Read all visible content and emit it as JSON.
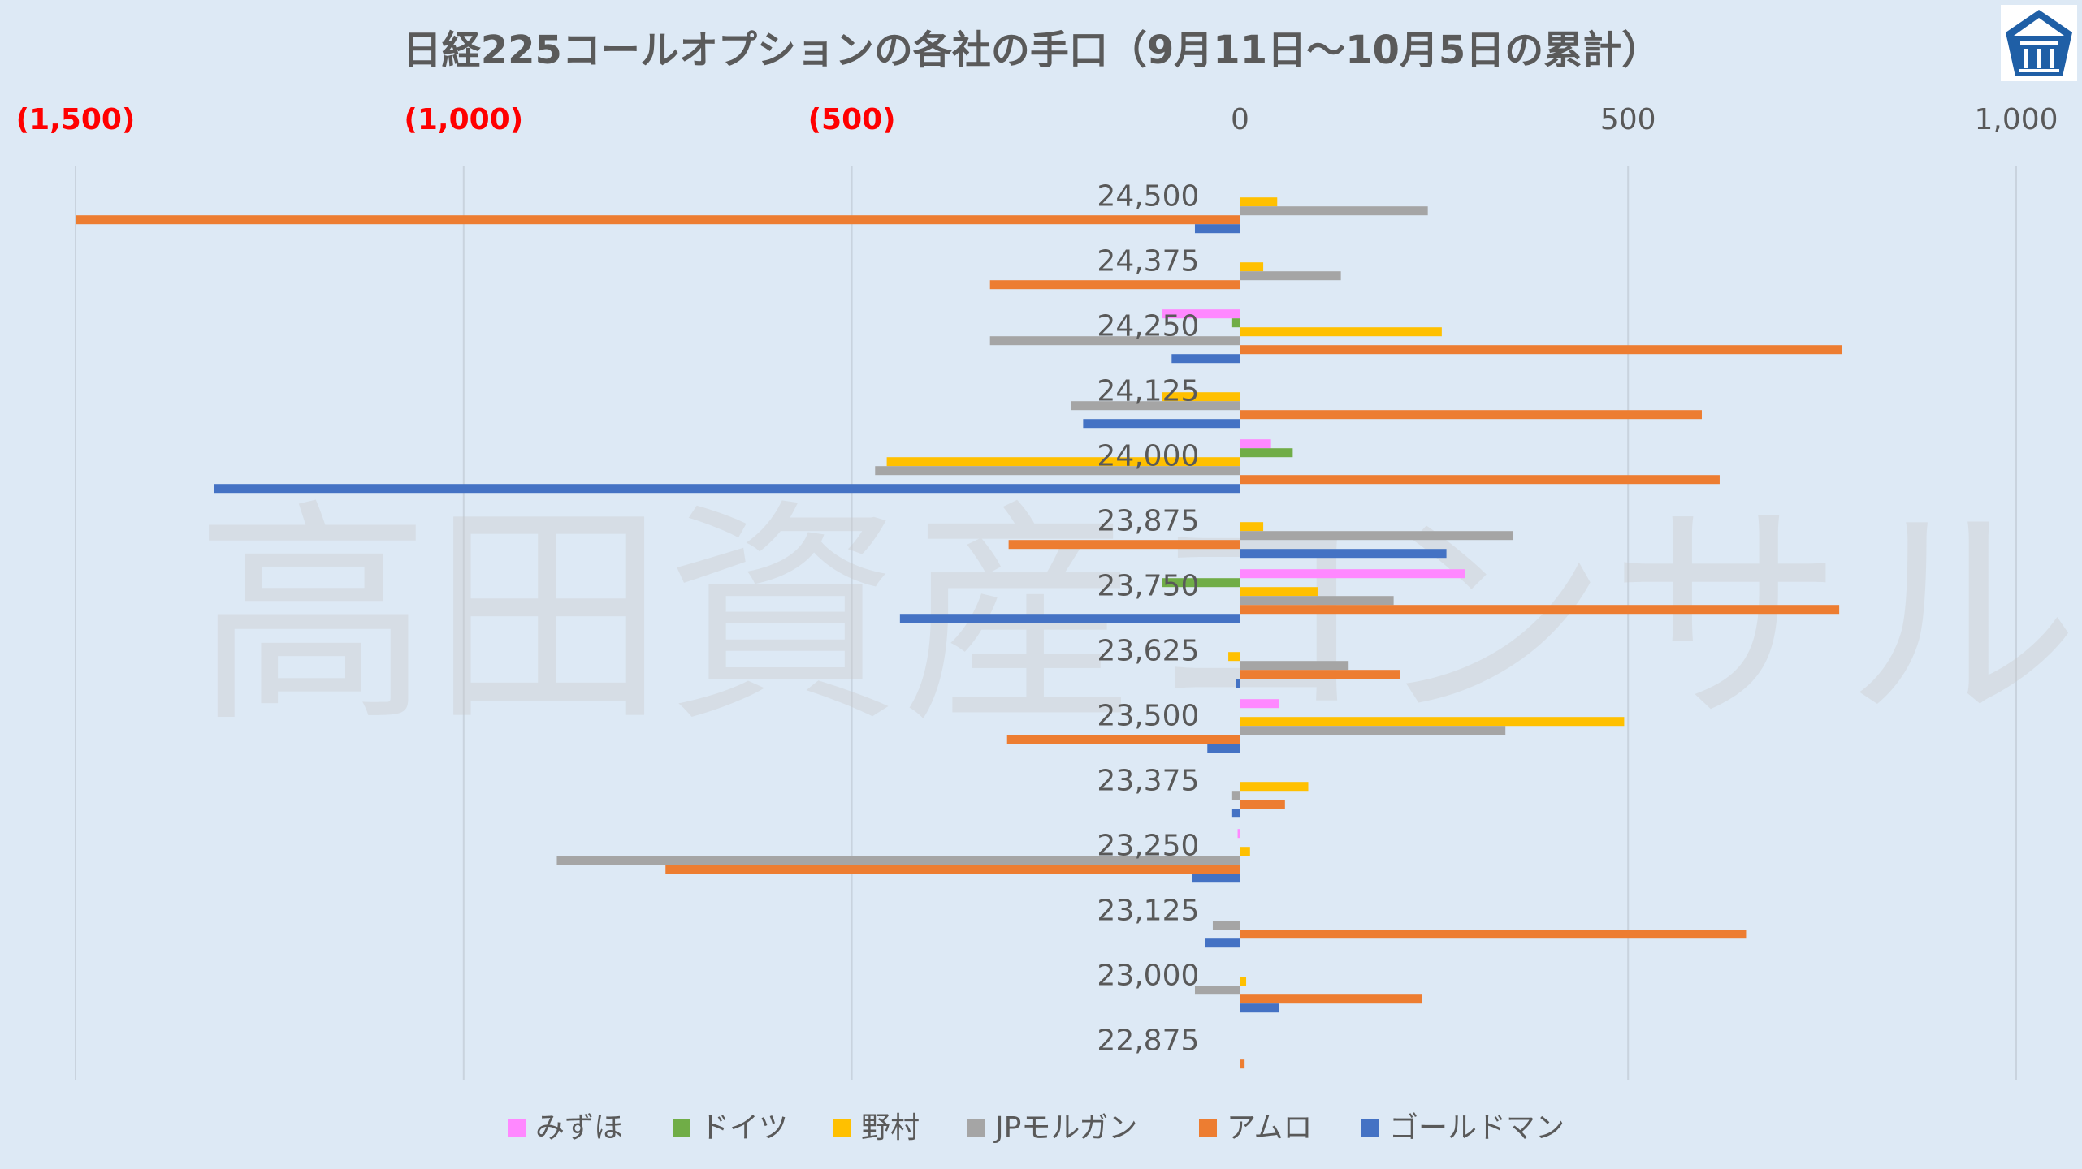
{
  "watermark_text": "高田資産コンサル",
  "chart_data": {
    "type": "bar",
    "orientation": "horizontal",
    "title": "日経225コールオプションの各社の手口（9月11日～10月5日の累計）",
    "xlim": [
      -1500,
      1000
    ],
    "x_ticks": [
      {
        "value": -1500,
        "label": "(1,500)",
        "color": "#ff0000"
      },
      {
        "value": -1000,
        "label": "(1,000)",
        "color": "#ff0000"
      },
      {
        "value": -500,
        "label": "(500)",
        "color": "#ff0000"
      },
      {
        "value": 0,
        "label": "0",
        "color": "#595959"
      },
      {
        "value": 500,
        "label": "500",
        "color": "#595959"
      },
      {
        "value": 1000,
        "label": "1,000",
        "color": "#595959"
      }
    ],
    "grid": true,
    "legend_position": "bottom",
    "categories": [
      "24,500",
      "24,375",
      "24,250",
      "24,125",
      "24,000",
      "23,875",
      "23,750",
      "23,625",
      "23,500",
      "23,375",
      "23,250",
      "23,125",
      "23,000",
      "22,875"
    ],
    "series": [
      {
        "name": "みずほ",
        "color": "#ff88ff",
        "values": [
          0,
          0,
          -100,
          0,
          40,
          0,
          290,
          0,
          50,
          0,
          -3,
          0,
          0,
          0
        ]
      },
      {
        "name": "ドイツ",
        "color": "#70ad47",
        "values": [
          0,
          0,
          -10,
          0,
          68,
          0,
          -100,
          0,
          0,
          0,
          0,
          0,
          0,
          0
        ]
      },
      {
        "name": "野村",
        "color": "#ffc000",
        "values": [
          48,
          30,
          260,
          -100,
          -455,
          30,
          100,
          -15,
          495,
          88,
          13,
          0,
          8,
          0
        ]
      },
      {
        "name": "JPモルガン",
        "color": "#a5a5a5",
        "values": [
          242,
          130,
          -322,
          -218,
          -470,
          352,
          198,
          140,
          342,
          -10,
          -880,
          -35,
          -58,
          0
        ]
      },
      {
        "name": "アムロ",
        "color": "#ed7d31",
        "values": [
          -1500,
          -322,
          776,
          595,
          618,
          -298,
          772,
          206,
          -300,
          58,
          -740,
          652,
          235,
          6
        ]
      },
      {
        "name": "ゴールドマン",
        "color": "#4472c4",
        "values": [
          -58,
          0,
          -88,
          -202,
          -1322,
          266,
          -438,
          -5,
          -42,
          -10,
          -62,
          -45,
          50,
          0
        ]
      }
    ]
  }
}
